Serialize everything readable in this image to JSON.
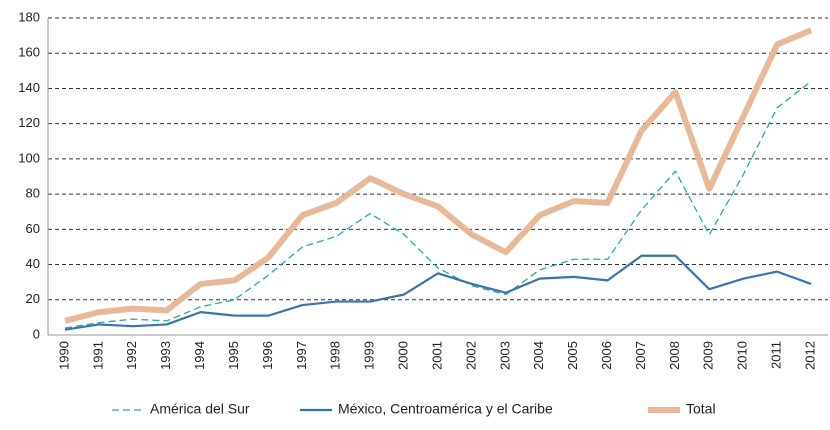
{
  "chart_data": {
    "type": "line",
    "categories": [
      "1990",
      "1991",
      "1992",
      "1993",
      "1994",
      "1995",
      "1996",
      "1997",
      "1998",
      "1999",
      "2000",
      "2001",
      "2002",
      "2003",
      "2004",
      "2005",
      "2006",
      "2007",
      "2008",
      "2009",
      "2010",
      "2011",
      "2012"
    ],
    "series": [
      {
        "name": "América del Sur",
        "color": "#2aa7b3",
        "style": "dashed",
        "values": [
          4,
          7,
          9,
          8,
          16,
          20,
          34,
          50,
          56,
          69,
          57,
          38,
          28,
          23,
          37,
          43,
          43,
          71,
          93,
          57,
          91,
          129,
          144
        ]
      },
      {
        "name": "México, Centroamérica y el Caribe",
        "color": "#3a74ad",
        "style": "solid",
        "values": [
          3,
          6,
          5,
          6,
          13,
          11,
          11,
          17,
          19,
          19,
          23,
          35,
          29,
          24,
          32,
          33,
          31,
          45,
          45,
          26,
          32,
          36,
          29
        ]
      },
      {
        "name": "Total",
        "color": "#e8b998",
        "style": "thick",
        "values": [
          8,
          13,
          15,
          14,
          29,
          31,
          44,
          68,
          75,
          89,
          80,
          73,
          57,
          47,
          68,
          76,
          75,
          116,
          138,
          83,
          124,
          165,
          173
        ]
      }
    ],
    "ylim": [
      0,
      180
    ],
    "yticks": [
      0,
      20,
      40,
      60,
      80,
      100,
      120,
      140,
      160,
      180
    ],
    "grid": true,
    "legend": "bottom"
  }
}
